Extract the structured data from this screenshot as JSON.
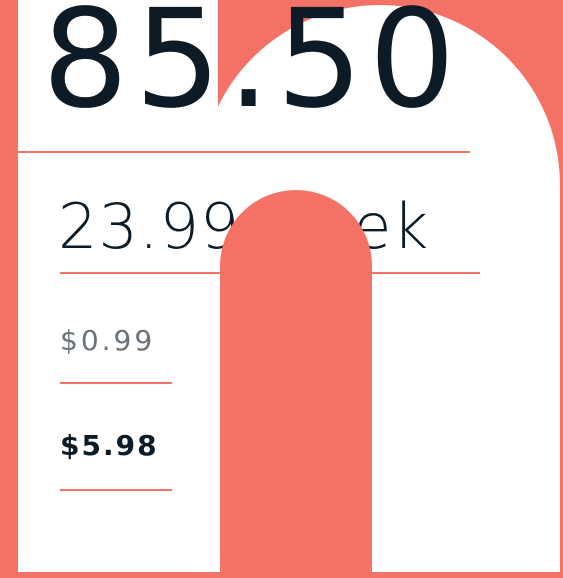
{
  "prices": {
    "main": "85.50",
    "weekly": "23.99/week",
    "option_1": "$0.99",
    "option_2": "$5.98"
  }
}
